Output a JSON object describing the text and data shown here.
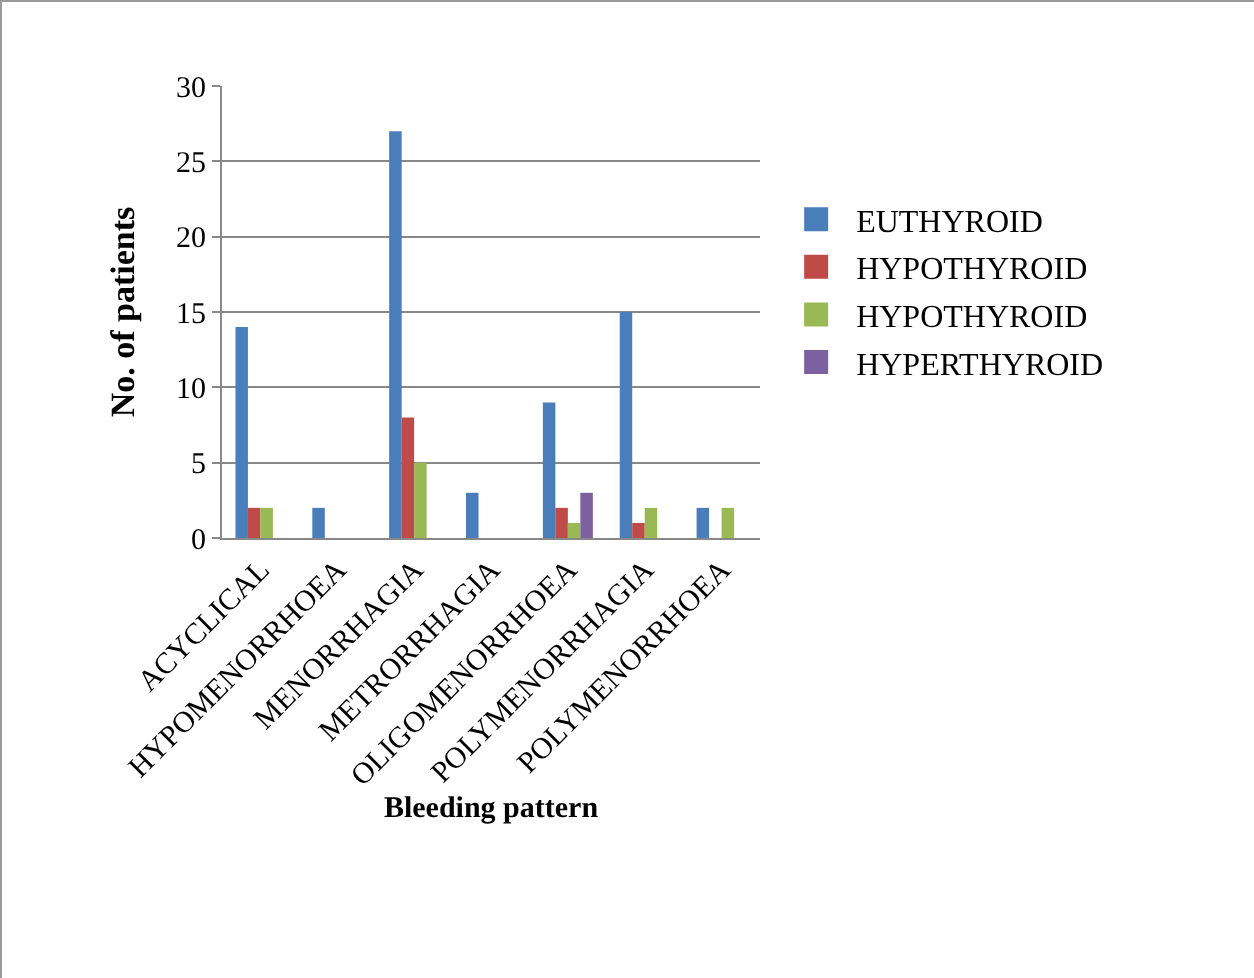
{
  "chart_data": {
    "type": "bar",
    "xlabel": "Bleeding pattern",
    "ylabel": "No. of patients",
    "categories": [
      "ACYCLICAL",
      "HYPOMENORRHOEA",
      "MENORRHAGIA",
      "METRORRHAGIA",
      "OLIGOMENORRHOEA",
      "POLYMENORRHAGIA",
      "POLYMENORRHOEA"
    ],
    "series": [
      {
        "name": "EUTHYROID",
        "color": "#4a7ebb",
        "values": [
          14,
          2,
          27,
          3,
          9,
          15,
          2
        ]
      },
      {
        "name": "HYPOTHYROID",
        "color": "#be4b48",
        "values": [
          2,
          0,
          8,
          0,
          2,
          1,
          0
        ]
      },
      {
        "name": "HYPOTHYROID",
        "color": "#98b954",
        "values": [
          2,
          0,
          5,
          0,
          1,
          2,
          2
        ]
      },
      {
        "name": "HYPERTHYROID",
        "color": "#7d60a0",
        "values": [
          0,
          0,
          0,
          0,
          3,
          0,
          0
        ]
      }
    ],
    "ylim": [
      0,
      30
    ],
    "yticks": [
      0,
      5,
      10,
      15,
      20,
      25,
      30
    ],
    "grid": "y",
    "legend": "right"
  }
}
